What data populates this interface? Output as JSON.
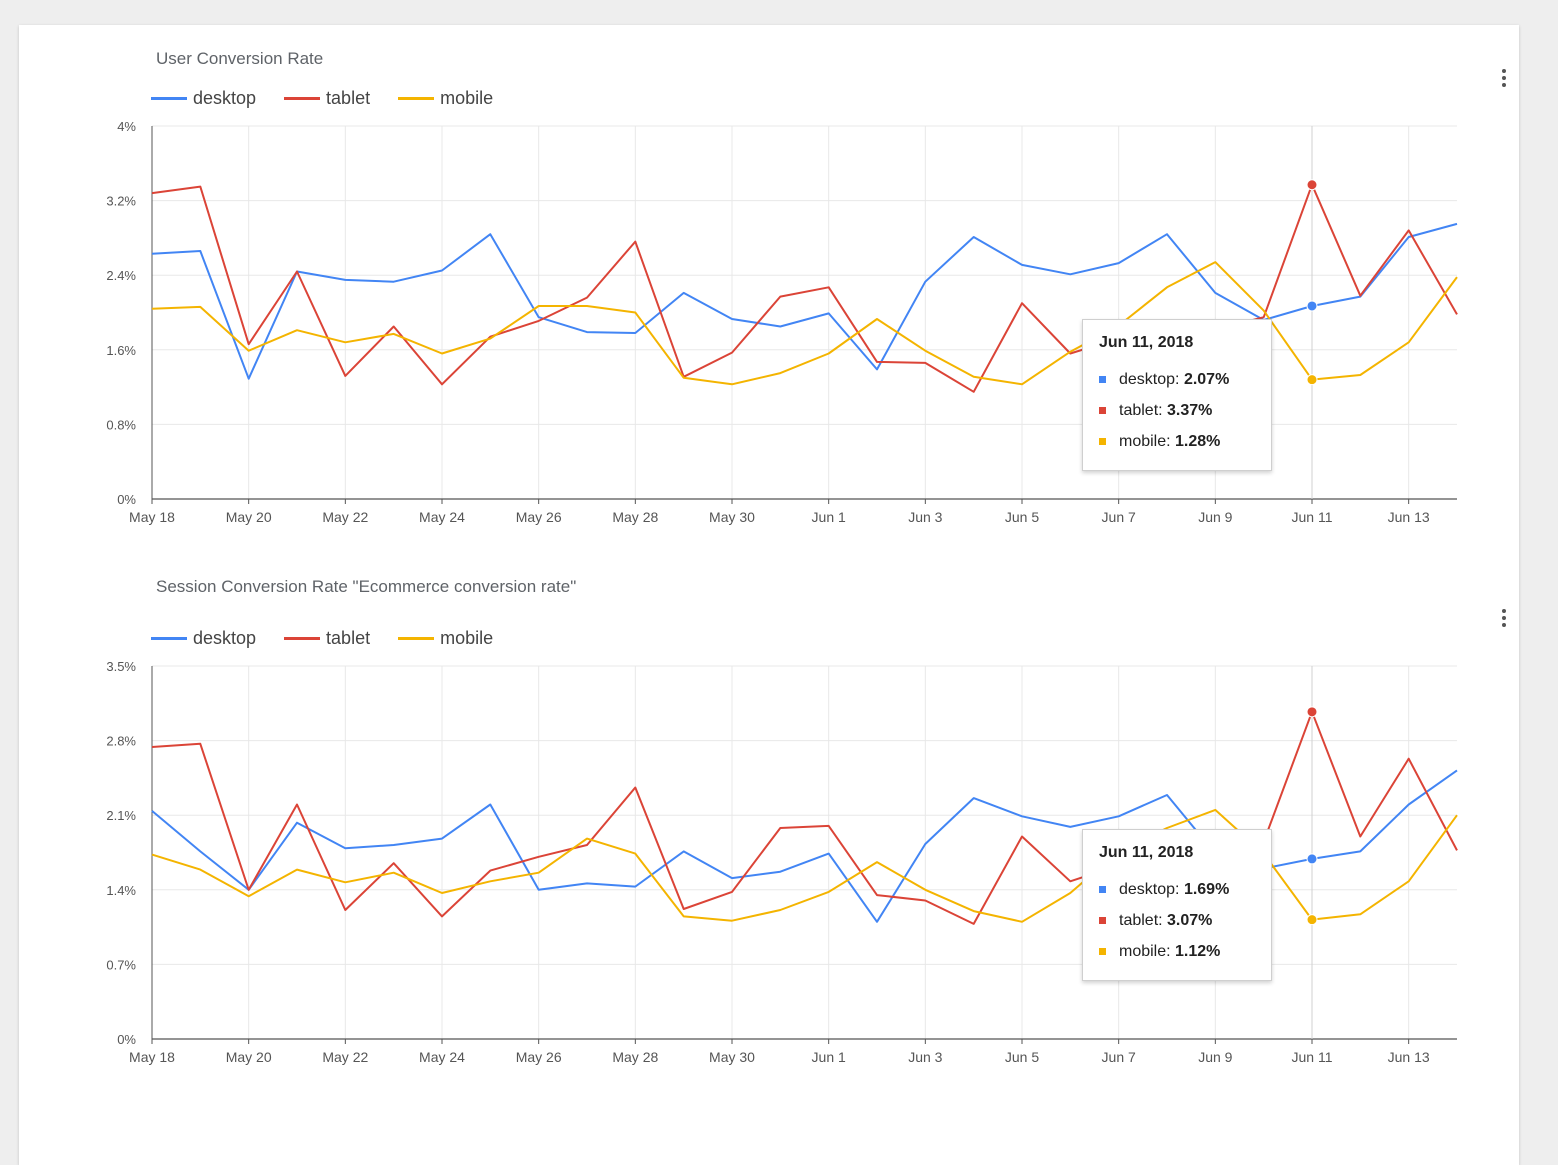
{
  "colors": {
    "desktop": "#4285f4",
    "tablet": "#db4437",
    "mobile": "#f4b400"
  },
  "chart_data": [
    {
      "type": "line",
      "title": "User Conversion Rate",
      "x": [
        "May 18",
        "May 19",
        "May 20",
        "May 21",
        "May 22",
        "May 23",
        "May 24",
        "May 25",
        "May 26",
        "May 27",
        "May 28",
        "May 29",
        "May 30",
        "May 31",
        "Jun 1",
        "Jun 2",
        "Jun 3",
        "Jun 4",
        "Jun 5",
        "Jun 6",
        "Jun 7",
        "Jun 8",
        "Jun 9",
        "Jun 10",
        "Jun 11",
        "Jun 12",
        "Jun 13",
        "Jun 14"
      ],
      "x_tick_labels": [
        "May 18",
        "May 20",
        "May 22",
        "May 24",
        "May 26",
        "May 28",
        "May 30",
        "Jun 1",
        "Jun 3",
        "Jun 5",
        "Jun 7",
        "Jun 9",
        "Jun 11",
        "Jun 13"
      ],
      "ylim": [
        0,
        4
      ],
      "y_ticks": [
        0,
        0.8,
        1.6,
        2.4,
        3.2,
        4
      ],
      "y_tick_labels": [
        "0%",
        "0.8%",
        "1.6%",
        "2.4%",
        "3.2%",
        "4%"
      ],
      "grid": true,
      "legend": "top-left",
      "series": [
        {
          "name": "desktop",
          "values": [
            2.63,
            2.66,
            1.29,
            2.44,
            2.35,
            2.33,
            2.45,
            2.84,
            1.95,
            1.79,
            1.78,
            2.21,
            1.93,
            1.85,
            1.99,
            1.39,
            2.33,
            2.81,
            2.51,
            2.41,
            2.53,
            2.84,
            2.21,
            1.92,
            2.07,
            2.17,
            2.81,
            2.95
          ]
        },
        {
          "name": "tablet",
          "values": [
            3.28,
            3.35,
            1.66,
            2.44,
            1.32,
            1.85,
            1.23,
            1.74,
            1.91,
            2.16,
            2.76,
            1.31,
            1.57,
            2.17,
            2.27,
            1.47,
            1.46,
            1.15,
            2.1,
            1.56,
            1.72,
            1.75,
            1.82,
            1.95,
            3.37,
            2.18,
            2.88,
            1.98
          ]
        },
        {
          "name": "mobile",
          "values": [
            2.04,
            2.06,
            1.59,
            1.81,
            1.68,
            1.77,
            1.56,
            1.72,
            2.07,
            2.07,
            2.0,
            1.3,
            1.23,
            1.35,
            1.56,
            1.93,
            1.59,
            1.31,
            1.23,
            1.58,
            1.86,
            2.27,
            2.54,
            2.02,
            1.28,
            1.33,
            1.68,
            2.38
          ]
        }
      ],
      "tooltip": {
        "date": "Jun 11, 2018",
        "rows": [
          {
            "name": "desktop",
            "value": "2.07%"
          },
          {
            "name": "tablet",
            "value": "3.37%"
          },
          {
            "name": "mobile",
            "value": "1.28%"
          }
        ]
      }
    },
    {
      "type": "line",
      "title": "Session Conversion Rate \"Ecommerce conversion rate\"",
      "x": [
        "May 18",
        "May 19",
        "May 20",
        "May 21",
        "May 22",
        "May 23",
        "May 24",
        "May 25",
        "May 26",
        "May 27",
        "May 28",
        "May 29",
        "May 30",
        "May 31",
        "Jun 1",
        "Jun 2",
        "Jun 3",
        "Jun 4",
        "Jun 5",
        "Jun 6",
        "Jun 7",
        "Jun 8",
        "Jun 9",
        "Jun 10",
        "Jun 11",
        "Jun 12",
        "Jun 13",
        "Jun 14"
      ],
      "x_tick_labels": [
        "May 18",
        "May 20",
        "May 22",
        "May 24",
        "May 26",
        "May 28",
        "May 30",
        "Jun 1",
        "Jun 3",
        "Jun 5",
        "Jun 7",
        "Jun 9",
        "Jun 11",
        "Jun 13"
      ],
      "ylim": [
        0,
        3.5
      ],
      "y_ticks": [
        0,
        0.7,
        1.4,
        2.1,
        2.8,
        3.5
      ],
      "y_tick_labels": [
        "0%",
        "0.7%",
        "1.4%",
        "2.1%",
        "2.8%",
        "3.5%"
      ],
      "grid": true,
      "legend": "top-left",
      "series": [
        {
          "name": "desktop",
          "values": [
            2.14,
            1.76,
            1.4,
            2.03,
            1.79,
            1.82,
            1.88,
            2.2,
            1.4,
            1.46,
            1.43,
            1.76,
            1.51,
            1.57,
            1.74,
            1.1,
            1.83,
            2.26,
            2.09,
            1.99,
            2.09,
            2.29,
            1.74,
            1.6,
            1.69,
            1.76,
            2.2,
            2.52
          ]
        },
        {
          "name": "tablet",
          "values": [
            2.74,
            2.77,
            1.4,
            2.2,
            1.21,
            1.65,
            1.15,
            1.58,
            1.71,
            1.82,
            2.36,
            1.22,
            1.38,
            1.98,
            2.0,
            1.35,
            1.3,
            1.08,
            1.9,
            1.48,
            1.63,
            1.76,
            1.8,
            1.85,
            3.07,
            1.9,
            2.63,
            1.77
          ]
        },
        {
          "name": "mobile",
          "values": [
            1.73,
            1.59,
            1.34,
            1.59,
            1.47,
            1.56,
            1.37,
            1.48,
            1.56,
            1.88,
            1.74,
            1.15,
            1.11,
            1.21,
            1.38,
            1.66,
            1.4,
            1.2,
            1.1,
            1.37,
            1.76,
            1.98,
            2.15,
            1.74,
            1.12,
            1.17,
            1.48,
            2.1
          ]
        }
      ],
      "tooltip": {
        "date": "Jun 11, 2018",
        "rows": [
          {
            "name": "desktop",
            "value": "1.69%"
          },
          {
            "name": "tablet",
            "value": "3.07%"
          },
          {
            "name": "mobile",
            "value": "1.12%"
          }
        ]
      }
    }
  ]
}
